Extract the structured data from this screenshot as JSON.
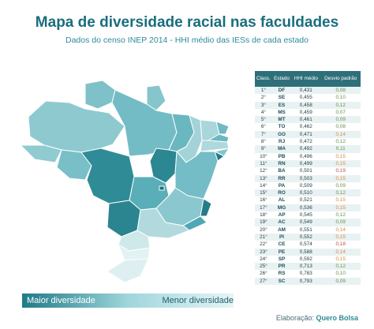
{
  "title": "Mapa de diversidade racial nas faculdades",
  "subtitle": "Dados do censo INEP 2014 - HHI médio das IESs de cada estado",
  "legend": {
    "left": "Maior diversidade",
    "right": "Menor diversidade"
  },
  "credit": {
    "prefix": "Elaboração:",
    "brand": "Quero Bolsa"
  },
  "table": {
    "headers": {
      "rank": "Class.",
      "state": "Estado",
      "hhi": "HHI médio",
      "dev": "Desvio padrão"
    },
    "rows": [
      {
        "rank": "1°",
        "state": "DF",
        "hhi": "0,431",
        "dev": "0,08"
      },
      {
        "rank": "2°",
        "state": "SE",
        "hhi": "0,455",
        "dev": "0,10"
      },
      {
        "rank": "3°",
        "state": "ES",
        "hhi": "0,458",
        "dev": "0,12"
      },
      {
        "rank": "4°",
        "state": "MS",
        "hhi": "0,459",
        "dev": "0,07"
      },
      {
        "rank": "5°",
        "state": "MT",
        "hhi": "0,461",
        "dev": "0,09"
      },
      {
        "rank": "6°",
        "state": "TO",
        "hhi": "0,462",
        "dev": "0,08"
      },
      {
        "rank": "7°",
        "state": "GO",
        "hhi": "0,471",
        "dev": "0,14"
      },
      {
        "rank": "8°",
        "state": "RJ",
        "hhi": "0,472",
        "dev": "0,12"
      },
      {
        "rank": "9°",
        "state": "MA",
        "hhi": "0,492",
        "dev": "0,11"
      },
      {
        "rank": "10°",
        "state": "PB",
        "hhi": "0,496",
        "dev": "0,15"
      },
      {
        "rank": "11°",
        "state": "RN",
        "hhi": "0,499",
        "dev": "0,15"
      },
      {
        "rank": "12°",
        "state": "BA",
        "hhi": "0,501",
        "dev": "0,19"
      },
      {
        "rank": "13°",
        "state": "RR",
        "hhi": "0,503",
        "dev": "0,15"
      },
      {
        "rank": "14°",
        "state": "PA",
        "hhi": "0,509",
        "dev": "0,09"
      },
      {
        "rank": "15°",
        "state": "RO",
        "hhi": "0,510",
        "dev": "0,12"
      },
      {
        "rank": "16°",
        "state": "AL",
        "hhi": "0,521",
        "dev": "0,15"
      },
      {
        "rank": "17°",
        "state": "MG",
        "hhi": "0,536",
        "dev": "0,15"
      },
      {
        "rank": "18°",
        "state": "AP",
        "hhi": "0,545",
        "dev": "0,12"
      },
      {
        "rank": "19°",
        "state": "AC",
        "hhi": "0,549",
        "dev": "0,09"
      },
      {
        "rank": "20°",
        "state": "AM",
        "hhi": "0,551",
        "dev": "0,14"
      },
      {
        "rank": "21°",
        "state": "PI",
        "hhi": "0,552",
        "dev": "0,15"
      },
      {
        "rank": "22°",
        "state": "CE",
        "hhi": "0,574",
        "dev": "0,18"
      },
      {
        "rank": "23°",
        "state": "PE",
        "hhi": "0,588",
        "dev": "0,14"
      },
      {
        "rank": "24°",
        "state": "SP",
        "hhi": "0,592",
        "dev": "0,15"
      },
      {
        "rank": "25°",
        "state": "PR",
        "hhi": "0,713",
        "dev": "0,12"
      },
      {
        "rank": "26°",
        "state": "RS",
        "hhi": "0,783",
        "dev": "0,10"
      },
      {
        "rank": "27°",
        "state": "SC",
        "hhi": "0,793",
        "dev": "0,09"
      }
    ]
  },
  "colors": {
    "accent": "#1a6e7e",
    "table_header": "#2e6f7a",
    "high_diversity": "#1f7a86",
    "low_diversity": "#e6f4f5"
  }
}
